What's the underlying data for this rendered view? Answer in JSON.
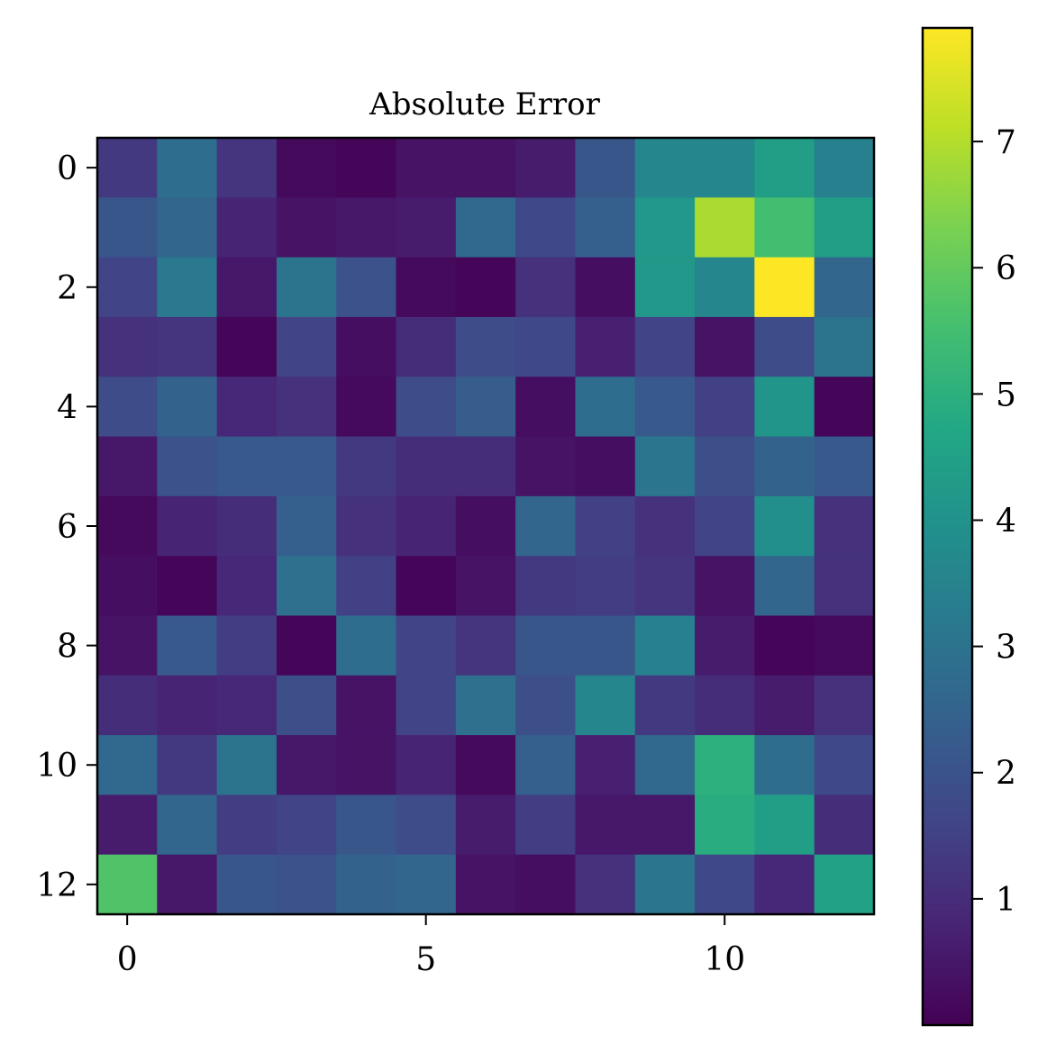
{
  "chart_data": {
    "type": "heatmap",
    "title": "Absolute Error",
    "xlabel": "",
    "ylabel": "",
    "x_ticks": [
      0,
      5,
      10
    ],
    "y_ticks": [
      0,
      2,
      4,
      6,
      8,
      10,
      12
    ],
    "colormap": "viridis",
    "colorbar": {
      "vmin": 0.0,
      "vmax": 7.9,
      "ticks": [
        1,
        2,
        3,
        4,
        5,
        6,
        7
      ]
    },
    "grid": false,
    "rows": 13,
    "cols": 13,
    "values": [
      [
        1.3,
        2.8,
        1.2,
        0.2,
        0.1,
        0.4,
        0.4,
        0.6,
        2.1,
        3.6,
        3.6,
        4.4,
        3.4
      ],
      [
        2.1,
        2.6,
        0.8,
        0.4,
        0.5,
        0.6,
        2.7,
        1.7,
        2.4,
        4.2,
        6.9,
        5.5,
        4.4
      ],
      [
        1.6,
        3.2,
        0.5,
        3.0,
        2.0,
        0.2,
        0.1,
        1.1,
        0.3,
        4.2,
        3.6,
        7.9,
        2.6
      ],
      [
        1.1,
        1.2,
        0.1,
        1.6,
        0.3,
        1.0,
        1.8,
        1.7,
        0.7,
        1.6,
        0.4,
        1.8,
        3.0
      ],
      [
        1.8,
        2.5,
        0.9,
        1.1,
        0.2,
        1.8,
        2.3,
        0.3,
        2.8,
        2.2,
        1.5,
        4.1,
        0.1
      ],
      [
        0.5,
        2.0,
        2.2,
        2.2,
        1.3,
        1.0,
        1.0,
        0.4,
        0.3,
        3.1,
        1.9,
        2.5,
        2.2
      ],
      [
        0.2,
        0.8,
        1.0,
        2.4,
        1.1,
        0.8,
        0.3,
        2.6,
        1.5,
        1.1,
        1.6,
        3.9,
        1.1
      ],
      [
        0.3,
        0.1,
        0.9,
        2.9,
        1.5,
        0.1,
        0.4,
        1.3,
        1.4,
        1.2,
        0.4,
        2.6,
        1.1
      ],
      [
        0.4,
        2.2,
        1.4,
        0.1,
        2.8,
        1.6,
        1.2,
        2.1,
        2.1,
        3.4,
        0.6,
        0.1,
        0.2
      ],
      [
        1.0,
        0.8,
        0.9,
        1.9,
        0.4,
        1.6,
        2.9,
        1.9,
        3.6,
        1.3,
        1.0,
        0.6,
        1.1
      ],
      [
        2.7,
        1.3,
        3.0,
        0.5,
        0.4,
        0.8,
        0.2,
        2.4,
        0.7,
        2.7,
        5.0,
        2.8,
        1.7
      ],
      [
        0.6,
        2.6,
        1.4,
        1.6,
        2.1,
        1.8,
        0.6,
        1.4,
        0.5,
        0.5,
        4.9,
        4.4,
        1.0
      ],
      [
        5.7,
        0.5,
        2.1,
        2.0,
        2.5,
        2.6,
        0.4,
        0.3,
        1.1,
        3.1,
        1.7,
        0.9,
        4.5
      ]
    ]
  }
}
